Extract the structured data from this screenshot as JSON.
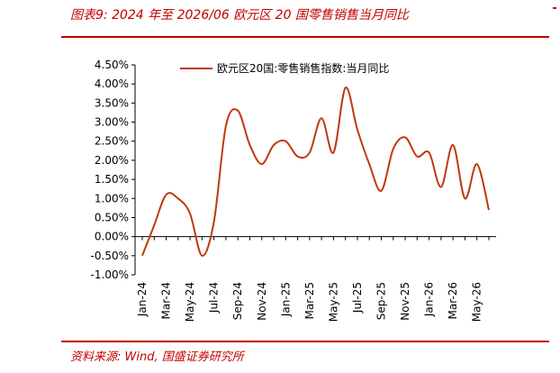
{
  "title": "图表9:  2024 年至 2026/06 欧元区 20 国零售销售当月同比",
  "source": "资料来源:  Wind,  国盛证券研究所",
  "colors": {
    "accent": "#c00000",
    "series": "#c0390f",
    "axis": "#000000"
  },
  "chart_data": {
    "type": "line",
    "title": "",
    "xlabel": "",
    "ylabel": "",
    "ylim": [
      -1.0,
      4.5
    ],
    "y_ticks": [
      "4.50%",
      "4.00%",
      "3.50%",
      "3.00%",
      "2.50%",
      "2.00%",
      "1.50%",
      "1.00%",
      "0.50%",
      "0.00%",
      "-0.50%",
      "-1.00%"
    ],
    "y_tick_values": [
      4.5,
      4.0,
      3.5,
      3.0,
      2.5,
      2.0,
      1.5,
      1.0,
      0.5,
      0.0,
      -0.5,
      -1.0
    ],
    "x_tick_labels": [
      "Jan-24",
      "Mar-24",
      "May-24",
      "Jul-24",
      "Sep-24",
      "Nov-24",
      "Jan-25",
      "Mar-25",
      "May-25",
      "Jul-25",
      "Sep-25",
      "Nov-25",
      "Jan-26",
      "Mar-26",
      "May-26"
    ],
    "legend_position": "top",
    "grid": false,
    "series": [
      {
        "name": "欧元区20国:零售销售指数:当月同比",
        "x": [
          "Jan-24",
          "Feb-24",
          "Mar-24",
          "Apr-24",
          "May-24",
          "Jun-24",
          "Jul-24",
          "Aug-24",
          "Sep-24",
          "Oct-24",
          "Nov-24",
          "Dec-24",
          "Jan-25",
          "Feb-25",
          "Mar-25",
          "Apr-25",
          "May-25",
          "Jun-25",
          "Jul-25",
          "Aug-25",
          "Sep-25",
          "Oct-25",
          "Nov-25",
          "Dec-25",
          "Jan-26",
          "Feb-26",
          "Mar-26",
          "Apr-26",
          "May-26",
          "Jun-26"
        ],
        "values": [
          -0.5,
          0.3,
          1.1,
          1.0,
          0.6,
          -0.5,
          0.4,
          2.9,
          3.3,
          2.4,
          1.9,
          2.4,
          2.5,
          2.1,
          2.2,
          3.1,
          2.2,
          3.9,
          2.8,
          1.9,
          1.2,
          2.3,
          2.6,
          2.1,
          2.2,
          1.3,
          2.4,
          1.0,
          1.9,
          0.7
        ]
      }
    ]
  }
}
